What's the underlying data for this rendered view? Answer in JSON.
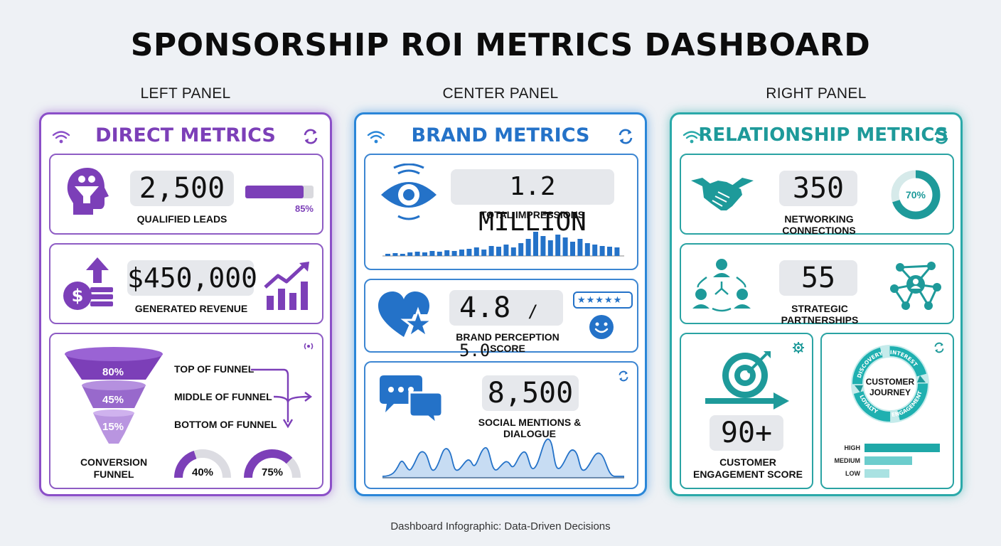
{
  "title": "SPONSORSHIP ROI METRICS DASHBOARD",
  "panel_labels": {
    "left": "LEFT PANEL",
    "center": "CENTER PANEL",
    "right": "RIGHT PANEL"
  },
  "left": {
    "title": "DIRECT METRICS",
    "leads": {
      "value": "2,500",
      "label": "QUALIFIED LEADS",
      "progress_text": "85%",
      "progress": 0.85
    },
    "revenue": {
      "value": "$450,000",
      "label": "GENERATED REVENUE"
    },
    "funnel": {
      "stages": [
        {
          "pct": "80%",
          "label": "TOP OF FUNNEL"
        },
        {
          "pct": "45%",
          "label": "MIDDLE OF FUNNEL"
        },
        {
          "pct": "15%",
          "label": "BOTTOM OF FUNNEL"
        }
      ],
      "caption_line1": "CONVERSION",
      "caption_line2": "FUNNEL",
      "gauges": [
        {
          "text": "40%",
          "value": 0.4
        },
        {
          "text": "75%",
          "value": 0.75
        }
      ]
    }
  },
  "center": {
    "title": "BRAND METRICS",
    "impressions": {
      "value": "1.2 MILLION",
      "label": "TOTAL IMPRESSIONS"
    },
    "perception": {
      "value": "4.8",
      "of": "/ 5.0",
      "label": "BRAND PERCEPTION SCORE",
      "stars": "★★★★★"
    },
    "mentions": {
      "value": "8,500",
      "label": "SOCIAL MENTIONS & DIALOGUE"
    }
  },
  "right": {
    "title": "RELATIONSHIP METRICS",
    "connections": {
      "value": "350",
      "label": "NETWORKING CONNECTIONS",
      "ring_text": "70%",
      "ring": 0.7
    },
    "partnerships": {
      "value": "55",
      "label": "STRATEGIC PARTNERSHIPS"
    },
    "engagement": {
      "value": "90+",
      "label_line1": "CUSTOMER",
      "label_line2": "ENGAGEMENT SCORE"
    },
    "journey": {
      "center_line1": "CUSTOMER",
      "center_line2": "JOURNEY",
      "stages": [
        "DISCOVERY",
        "INTEREST",
        "ENGAGEMENT",
        "LOYALTY"
      ],
      "levels": [
        {
          "label": "HIGH",
          "value": 1.0
        },
        {
          "label": "MEDIUM",
          "value": 0.63
        },
        {
          "label": "LOW",
          "value": 0.33
        }
      ]
    }
  },
  "footer": "Dashboard Infographic: Data-Driven Decisions",
  "colors": {
    "purple": "#7c3fb8",
    "blue": "#2472c8",
    "teal": "#1e9a9a"
  }
}
